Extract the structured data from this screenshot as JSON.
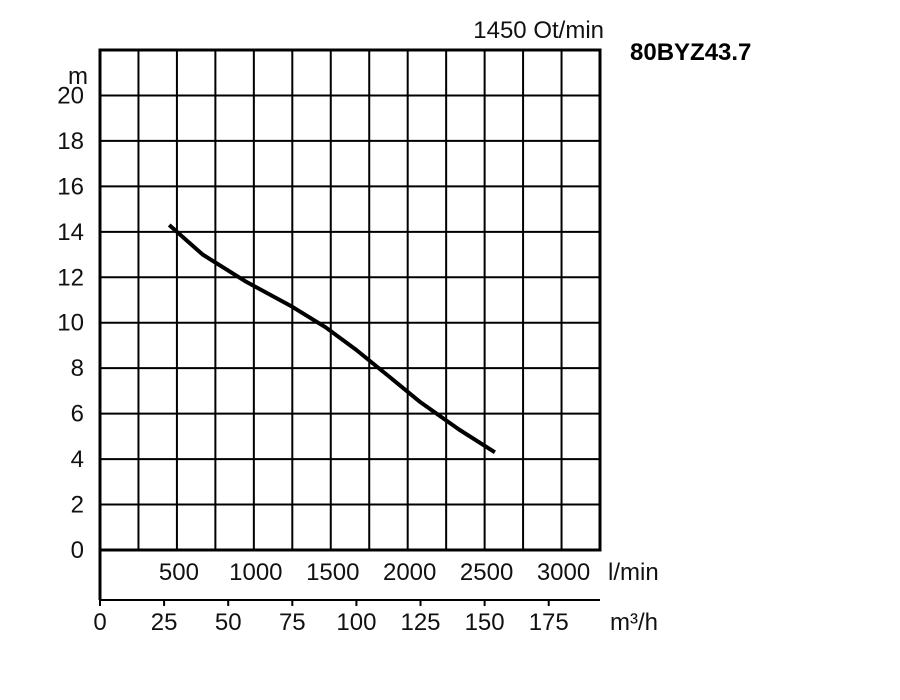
{
  "chart_data": {
    "type": "line",
    "speed_label": "1450 Ot/min",
    "model": "80BYZ43.7",
    "ylabel": "m",
    "ylim": [
      0,
      22
    ],
    "yticks": [
      "0",
      "2",
      "4",
      "6",
      "8",
      "10",
      "12",
      "14",
      "16",
      "18",
      "20"
    ],
    "x_unit_m3h": "m³/h",
    "xlim_m3h": [
      0,
      195
    ],
    "m3h_ticks": [
      "0",
      "25",
      "50",
      "75",
      "100",
      "125",
      "150",
      "175"
    ],
    "x_unit_lmin": "l/min",
    "lmin_ticks": [
      "500",
      "1000",
      "1500",
      "2000",
      "2500",
      "3000"
    ],
    "grid": true,
    "series": [
      {
        "x": [
          27,
          40,
          57,
          75,
          88,
          100,
          112,
          125,
          140,
          154
        ],
        "y": [
          14.3,
          13.0,
          11.8,
          10.7,
          9.8,
          8.8,
          7.7,
          6.5,
          5.3,
          4.3
        ]
      }
    ],
    "colors": {
      "curve": "#000000",
      "grid": "#000000"
    }
  }
}
